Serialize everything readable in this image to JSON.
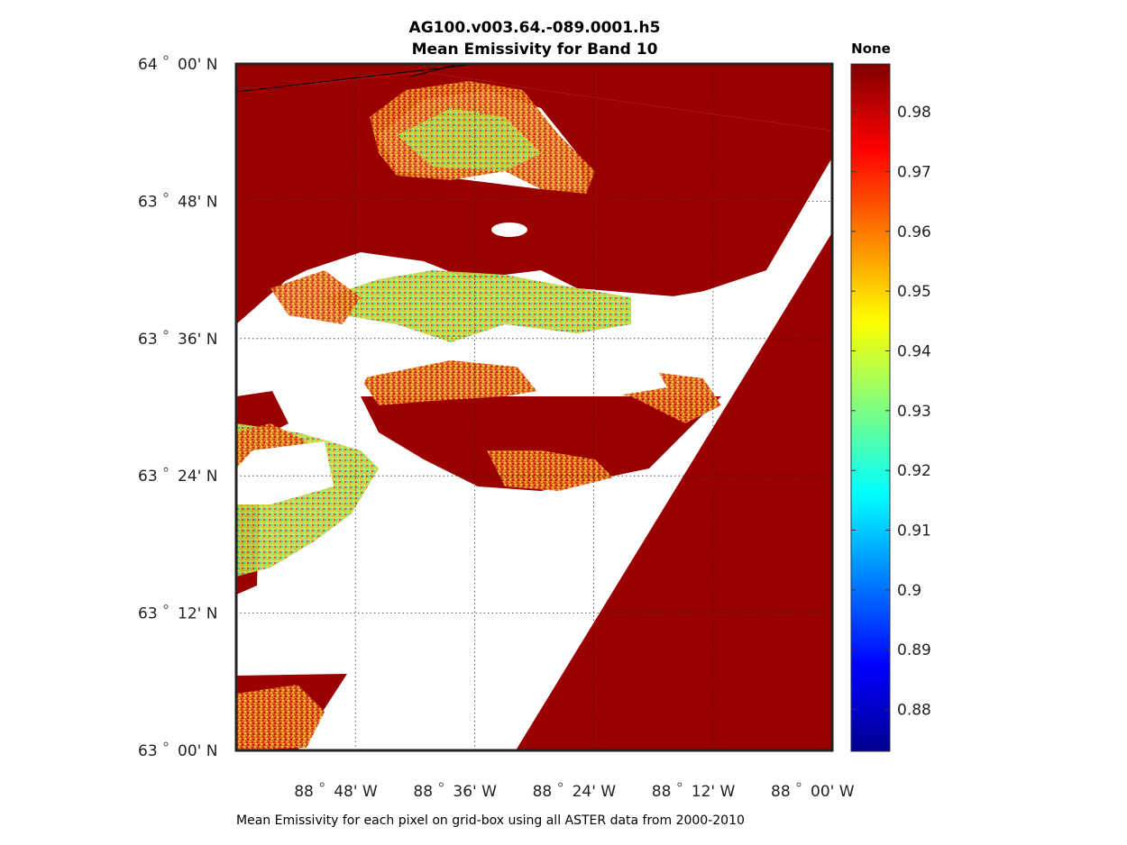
{
  "figure": {
    "title_line1": "AG100.v003.64.-089.0001.h5",
    "title_line2": "Mean Emissivity for Band 10",
    "footer": "Mean Emissivity for each pixel on grid-box using all ASTER data from 2000-2010"
  },
  "map": {
    "lat_range": [
      63.0,
      64.0
    ],
    "lon_range": [
      -89.0,
      -88.0
    ],
    "lat_ticks": [
      {
        "value": 64.0,
        "deg": "64",
        "min": "00' N"
      },
      {
        "value": 63.8,
        "deg": "63",
        "min": "48' N"
      },
      {
        "value": 63.6,
        "deg": "63",
        "min": "36' N"
      },
      {
        "value": 63.4,
        "deg": "63",
        "min": "24' N"
      },
      {
        "value": 63.2,
        "deg": "63",
        "min": "12' N"
      },
      {
        "value": 63.0,
        "deg": "63",
        "min": "00' N"
      }
    ],
    "lon_ticks": [
      {
        "value": -88.8,
        "deg": "88",
        "min": "48' W"
      },
      {
        "value": -88.6,
        "deg": "88",
        "min": "36' W"
      },
      {
        "value": -88.4,
        "deg": "88",
        "min": "24' W"
      },
      {
        "value": -88.2,
        "deg": "88",
        "min": "12' W"
      },
      {
        "value": -88.0,
        "deg": "88",
        "min": "00' W"
      }
    ],
    "grid": true,
    "colors": {
      "land_high": "#9a0000",
      "no_data": "#ffffff",
      "mixed_a": "#e0401a",
      "mixed_b": "#f0a020",
      "mixed_c": "#b8e040",
      "mixed_d": "#40e0b0"
    }
  },
  "colorbar": {
    "label": "None",
    "range": [
      0.873,
      0.988
    ],
    "ticks": [
      "0.98",
      "0.97",
      "0.96",
      "0.95",
      "0.94",
      "0.93",
      "0.92",
      "0.91",
      "0.9",
      "0.89",
      "0.88"
    ],
    "tick_values": [
      0.98,
      0.97,
      0.96,
      0.95,
      0.94,
      0.93,
      0.92,
      0.91,
      0.9,
      0.89,
      0.88
    ],
    "colormap": "jet"
  }
}
